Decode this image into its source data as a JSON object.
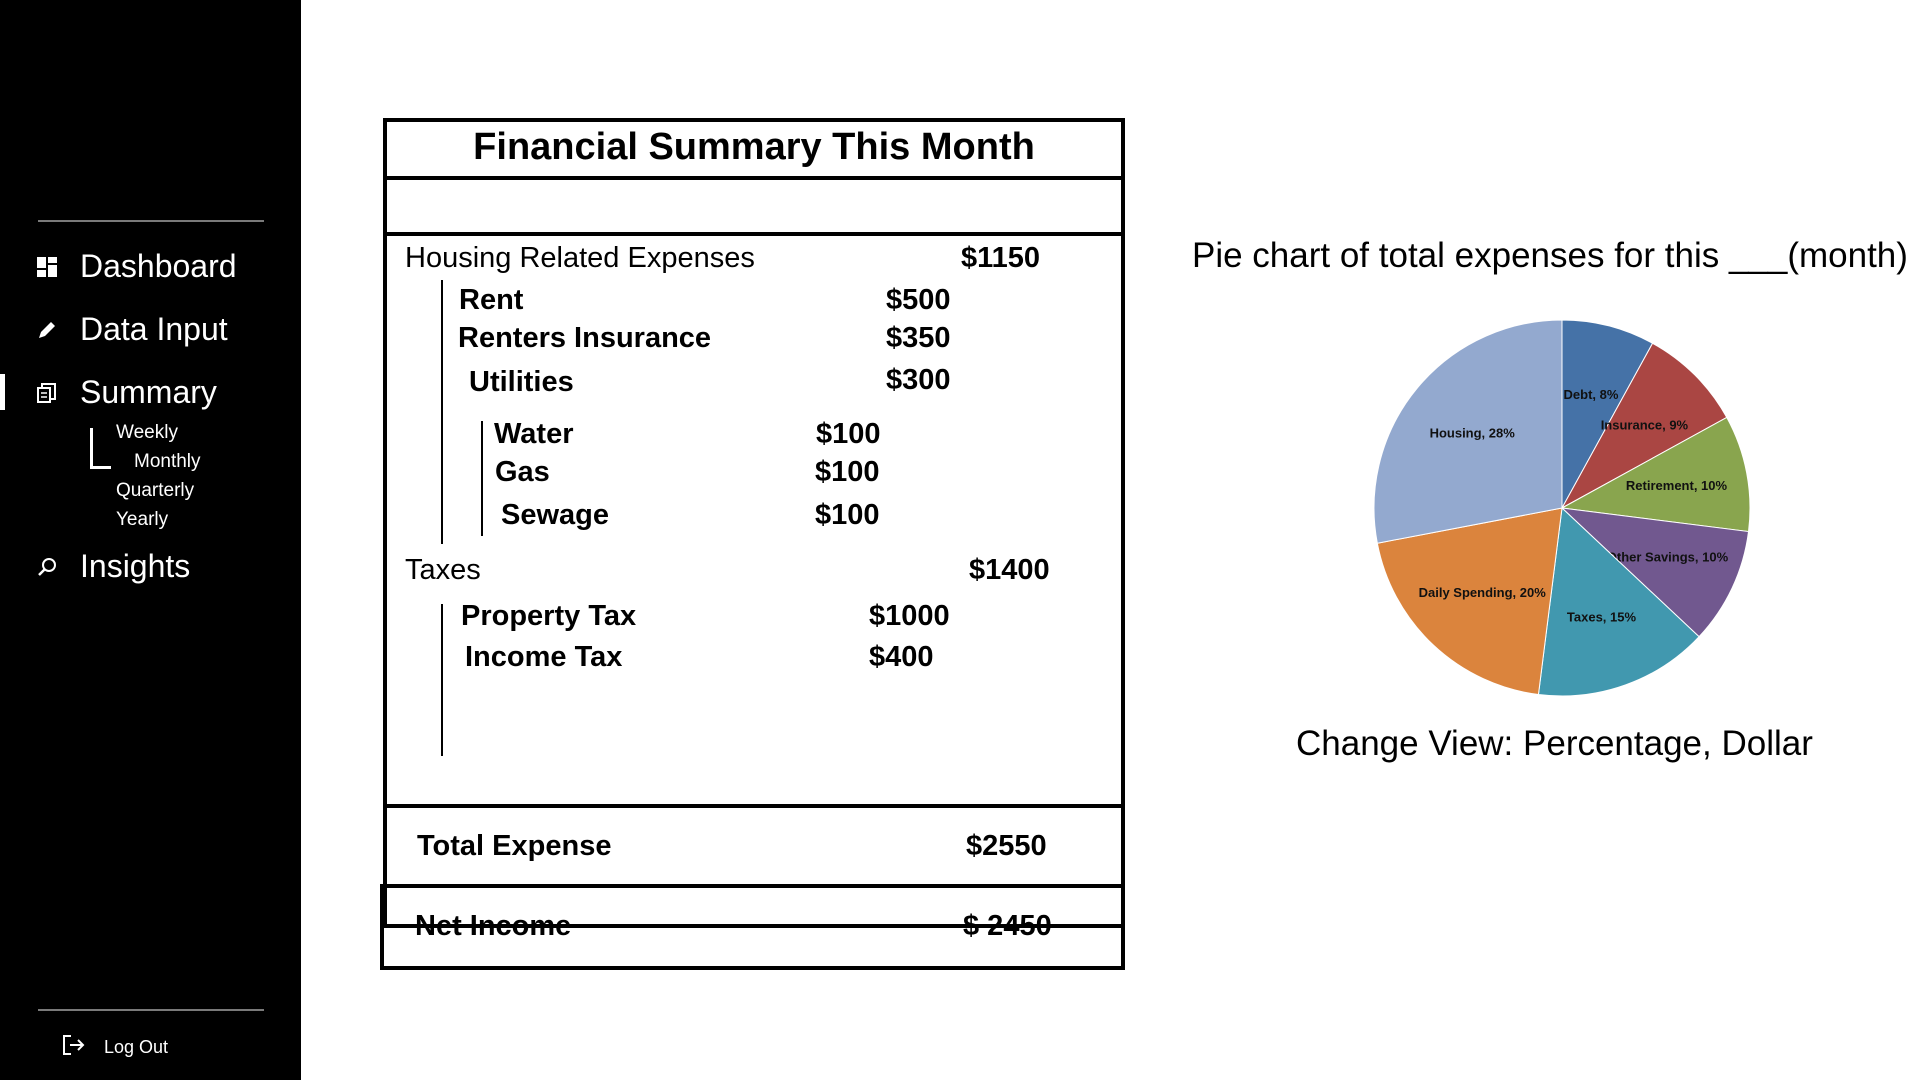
{
  "sidebar": {
    "nav": [
      {
        "label": "Dashboard",
        "icon": "dashboard-icon"
      },
      {
        "label": "Data Input",
        "icon": "pencil-icon"
      },
      {
        "label": "Summary",
        "icon": "document-icon"
      },
      {
        "label": "Insights",
        "icon": "search-icon"
      }
    ],
    "summary_subnav": [
      "Weekly",
      "Monthly",
      "Quarterly",
      "Yearly"
    ],
    "logout_label": "Log Out"
  },
  "summary": {
    "title": "Financial Summary This Month",
    "housing": {
      "label": "Housing Related Expenses",
      "total": "$1150",
      "rent": {
        "label": "Rent",
        "value": "$500"
      },
      "insurance": {
        "label": "Renters Insurance",
        "value": "$350"
      },
      "utilities": {
        "label": "Utilities",
        "value": "$300"
      },
      "water": {
        "label": "Water",
        "value": "$100"
      },
      "gas": {
        "label": "Gas",
        "value": "$100"
      },
      "sewage": {
        "label": "Sewage",
        "value": "$100"
      }
    },
    "taxes": {
      "label": "Taxes",
      "total": "$1400",
      "property": {
        "label": "Property Tax",
        "value": "$1000"
      },
      "income": {
        "label": "Income Tax",
        "value": "$400"
      }
    },
    "total_expense": {
      "label": "Total Expense",
      "value": "$2550"
    },
    "net_income": {
      "label": "Net Income",
      "value": "$ 2450"
    }
  },
  "chart_title": "Pie chart of total expenses for this ___(month)",
  "change_view": "Change View: Percentage, Dollar",
  "chart_data": {
    "type": "pie",
    "slices": [
      {
        "label": "Debt, 8%",
        "value": 8,
        "color": "#4572a7"
      },
      {
        "label": "Insurance, 9%",
        "value": 9,
        "color": "#aa4643"
      },
      {
        "label": "Retirement, 10%",
        "value": 10,
        "color": "#89a54e"
      },
      {
        "label": "Other Savings, 10%",
        "value": 10,
        "color": "#71588f"
      },
      {
        "label": "Taxes, 15%",
        "value": 15,
        "color": "#4198af"
      },
      {
        "label": "Daily Spending, 20%",
        "value": 20,
        "color": "#db843d"
      },
      {
        "label": "Housing, 28%",
        "value": 28,
        "color": "#93a9cf"
      }
    ]
  }
}
